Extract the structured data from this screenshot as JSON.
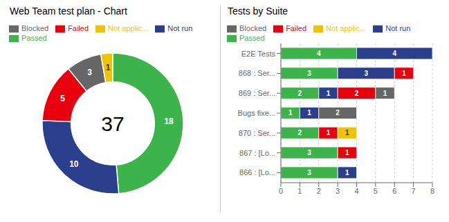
{
  "chart_data": [
    {
      "type": "pie",
      "title": "Web Team test plan - Chart",
      "categories": [
        "Passed",
        "Not run",
        "Failed",
        "Blocked",
        "Not applic..."
      ],
      "values": [
        18,
        10,
        5,
        3,
        1
      ],
      "colors": [
        "#3cb44b",
        "#2b3f8c",
        "#e8000d",
        "#666666",
        "#f0c300"
      ],
      "data_labels": true,
      "legend": "upper left",
      "annotations": [
        "37"
      ]
    },
    {
      "type": "bar",
      "title": "Tests by Suite",
      "orientation": "horizontal",
      "stacked": true,
      "categories": [
        "E2E Tests",
        "868 : Ser...",
        "869 : Ser...",
        "Bugs fixe...",
        "870 : Ser...",
        "867 : [Lo...",
        "866 : [Lo..."
      ],
      "series": [
        {
          "name": "Passed",
          "color": "#3cb44b",
          "values": [
            4,
            3,
            2,
            1,
            2,
            3,
            3
          ]
        },
        {
          "name": "Not run",
          "color": "#2b3f8c",
          "values": [
            4,
            3,
            1,
            1,
            0,
            0,
            1
          ]
        },
        {
          "name": "Failed",
          "color": "#e8000d",
          "values": [
            0,
            1,
            2,
            0,
            1,
            1,
            0
          ]
        },
        {
          "name": "Blocked",
          "color": "#666666",
          "values": [
            0,
            0,
            1,
            2,
            0,
            0,
            0
          ]
        },
        {
          "name": "Not applic...",
          "color": "#f0c300",
          "values": [
            0,
            0,
            0,
            0,
            1,
            0,
            0
          ]
        }
      ],
      "xlim": [
        0,
        8
      ],
      "xticks": [
        0,
        1,
        2,
        3,
        4,
        5,
        6,
        7,
        8
      ],
      "grid": true,
      "data_labels": true,
      "legend": "upper left"
    }
  ]
}
